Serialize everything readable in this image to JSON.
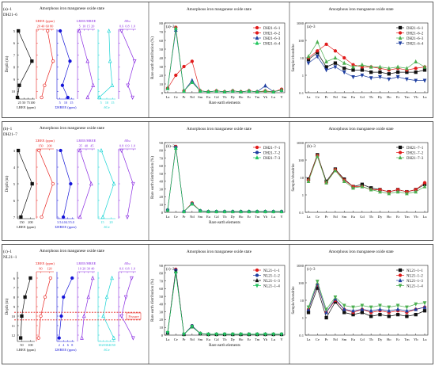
{
  "colors": {
    "black": "#111111",
    "red": "#e8231f",
    "blue": "#1515d8",
    "purple": "#8a2be2",
    "cyan": "#17d4d4",
    "fracture": "#e8231f",
    "s_red": "#e11b1b",
    "s_blue": "#1f3fa0",
    "s_green": "#22c55e",
    "s_light_green": "#4caf50"
  },
  "chart_data": [
    {
      "id": "a1",
      "label": "(a)–1",
      "sample": "DH21–6",
      "title": "Amorphous iron manganese oxide state",
      "type": "line",
      "ylabel": "Depth (m)",
      "ylim": [
        5,
        10.5
      ],
      "yticks": [
        5,
        6,
        7,
        8,
        9,
        10
      ],
      "depths": [
        5,
        7.5,
        9.5,
        10.5
      ],
      "fracture": null,
      "tracks": [
        {
          "key": "lree",
          "name": "LREE (ppm)",
          "axis": "bottom",
          "ticks": [
            "25",
            "50",
            "75",
            "100"
          ],
          "xlim": [
            15,
            105
          ],
          "values": [
            20,
            90,
            25,
            15
          ]
        },
        {
          "key": "sree",
          "name": "ΣREE (ppm)",
          "axis": "top",
          "ticks": [
            "20",
            "40",
            "60",
            "80"
          ],
          "xlim": [
            15,
            85
          ],
          "values": [
            60,
            82,
            48,
            36
          ]
        },
        {
          "key": "hree",
          "name": "ΣHREE (ppm)",
          "axis": "bottom",
          "ticks": [
            "5",
            "10",
            "15"
          ],
          "xlim": [
            2,
            18
          ],
          "values": [
            5,
            14,
            7,
            12
          ]
        },
        {
          "key": "lh",
          "name": "LREE/HREE",
          "axis": "top",
          "ticks": [
            "5",
            "10",
            "15",
            "20"
          ],
          "xlim": [
            3,
            22
          ],
          "values": [
            5,
            14,
            20,
            14
          ]
        },
        {
          "key": "ce",
          "name": "δCe",
          "axis": "bottom",
          "ticks": [
            "5",
            "10",
            "15"
          ],
          "xlim": [
            2,
            18
          ],
          "values": [
            12,
            13,
            15,
            3
          ]
        },
        {
          "key": "eu",
          "name": "δEu",
          "axis": "top",
          "ticks": [
            "0.6",
            "0.8",
            "1.0"
          ],
          "xlim": [
            0.5,
            1.1
          ],
          "values": [
            0.6,
            1.05,
            0.82,
            0.98
          ]
        }
      ]
    },
    {
      "id": "a2",
      "label": "(a)–2",
      "type": "line",
      "title": "Amorphous iron manganese oxide state",
      "xlabel": "Rare earth elements",
      "ylabel": "Rare earth distribution (%)",
      "ylim": [
        0,
        80
      ],
      "yticks": [
        "0",
        "10",
        "20",
        "30",
        "40",
        "50",
        "60",
        "70",
        "80"
      ],
      "categories": [
        "La",
        "Ce",
        "Pr",
        "Nd",
        "Sm",
        "Eu",
        "Gd",
        "Tb",
        "Dy",
        "Ho",
        "Er",
        "Tm",
        "Yb",
        "Lu",
        "Y"
      ],
      "series": [
        {
          "name": "DH21–6–1",
          "color": "#e11b1b",
          "marker": "o",
          "values": [
            5,
            75,
            2,
            12,
            2,
            1,
            2,
            1,
            2,
            1,
            2,
            1,
            1.5,
            1,
            3
          ]
        },
        {
          "name": "DH21–6–2",
          "color": "#e11b1b",
          "marker": "o",
          "values": [
            5,
            20,
            30,
            36,
            2,
            1,
            2,
            1,
            2,
            1,
            2,
            1,
            2,
            1,
            4
          ]
        },
        {
          "name": "DH21–6–3",
          "color": "#1f3fa0",
          "marker": "^",
          "values": [
            5,
            72,
            2,
            14,
            2,
            1,
            2,
            1,
            2,
            1,
            2,
            1,
            8,
            1,
            3
          ]
        },
        {
          "name": "DH21–6–4",
          "color": "#22c55e",
          "marker": "^",
          "values": [
            5,
            74,
            2,
            12,
            2,
            1,
            2,
            1,
            2,
            1,
            2,
            1,
            2,
            1,
            3
          ]
        }
      ]
    },
    {
      "id": "a3",
      "label": "(a)–3",
      "type": "line",
      "title": "Amorphous iron manganese oxide state",
      "ylabel": "Sample/chondrite",
      "ylog": true,
      "ylim": [
        0.1,
        1000
      ],
      "yticks": [
        "0.1",
        "1",
        "10",
        "100",
        "1000"
      ],
      "categories": [
        "La",
        "Ce",
        "Pr",
        "Nd",
        "Sm",
        "Eu",
        "Gd",
        "Tb",
        "Dy",
        "Ho",
        "Er",
        "Tm",
        "Yb",
        "Lu"
      ],
      "series": [
        {
          "name": "DH21–6–1",
          "color": "#111111",
          "marker": "s",
          "values": [
            8,
            20,
            3,
            5,
            2.5,
            2,
            2,
            1.5,
            1.5,
            1.2,
            1.5,
            1.5,
            1.5,
            2
          ]
        },
        {
          "name": "DH21–6–2",
          "color": "#e11b1b",
          "marker": "o",
          "values": [
            10,
            25,
            60,
            25,
            10,
            4,
            3,
            3,
            2.5,
            2,
            2.5,
            2,
            2.5,
            3
          ]
        },
        {
          "name": "DH21–6–3",
          "color": "#4caf50",
          "marker": "^",
          "values": [
            12,
            80,
            6,
            10,
            5,
            3,
            4,
            3,
            3,
            2.5,
            3,
            2.5,
            6,
            3
          ]
        },
        {
          "name": "DH21–6–4",
          "color": "#1f3fa0",
          "marker": "v",
          "values": [
            5,
            12,
            2,
            3,
            1.5,
            0.8,
            1,
            0.7,
            0.8,
            0.6,
            0.8,
            0.6,
            0.5,
            0.5
          ]
        }
      ]
    },
    {
      "id": "b1",
      "label": "(b)–1",
      "sample": "DH21–7",
      "title": "Amorphous iron manganese oxide state",
      "type": "line",
      "ylabel": "Depth (m)",
      "ylim": [
        3,
        7
      ],
      "yticks": [
        3,
        4,
        5,
        6,
        7
      ],
      "depths": [
        3,
        5,
        7
      ],
      "fracture": null,
      "tracks": [
        {
          "key": "lree",
          "name": "LREE (ppm)",
          "axis": "bottom",
          "ticks": [
            "150",
            "200"
          ],
          "xlim": [
            120,
            220
          ],
          "values": [
            125,
            205,
            140
          ]
        },
        {
          "key": "sree",
          "name": "ΣREE (ppm)",
          "axis": "top",
          "ticks": [
            "150",
            "200"
          ],
          "xlim": [
            120,
            220
          ],
          "values": [
            135,
            215,
            150
          ]
        },
        {
          "key": "hree",
          "name": "ΣHREE (ppm)",
          "axis": "bottom",
          "ticks": [
            "3.5",
            "4.0",
            "4.5",
            "5.0"
          ],
          "xlim": [
            3.3,
            5.2
          ],
          "values": [
            3.7,
            4.8,
            4.0
          ]
        },
        {
          "key": "lh",
          "name": "LREE/HREE",
          "axis": "top",
          "ticks": [
            "35",
            "40",
            "45"
          ],
          "xlim": [
            33,
            47
          ],
          "values": [
            35,
            44,
            35
          ]
        },
        {
          "key": "ce",
          "name": "δCe",
          "axis": "bottom",
          "ticks": [
            "15",
            "20"
          ],
          "xlim": [
            12,
            23
          ],
          "values": [
            14,
            22,
            15
          ]
        },
        {
          "key": "eu",
          "name": "δEu",
          "axis": "top",
          "ticks": [
            "0.8",
            "0.9",
            "1.0"
          ],
          "xlim": [
            0.75,
            1.05
          ],
          "values": [
            0.8,
            1.0,
            0.9
          ]
        }
      ]
    },
    {
      "id": "b2",
      "label": "(b)–2",
      "type": "line",
      "title": "Amorphous iron manganese oxide state",
      "xlabel": "Rare earth elements",
      "ylabel": "Rare earth distribution (%)",
      "ylim": [
        0,
        90
      ],
      "yticks": [
        "0",
        "10",
        "20",
        "30",
        "40",
        "50",
        "60",
        "70",
        "80",
        "90"
      ],
      "categories": [
        "La",
        "Ce",
        "Pr",
        "Nd",
        "Sm",
        "Eu",
        "Gd",
        "Tb",
        "Dy",
        "Ho",
        "Er",
        "Tm",
        "Yb",
        "Lu",
        "Y"
      ],
      "series": [
        {
          "name": "DH21–7–1",
          "color": "#e11b1b",
          "marker": "o",
          "values": [
            3,
            85,
            1,
            12,
            2,
            1,
            1,
            1,
            1,
            1,
            1,
            1,
            1,
            1,
            1
          ]
        },
        {
          "name": "DH21–7–2",
          "color": "#1f3fa0",
          "marker": "o",
          "values": [
            3,
            84,
            1,
            11,
            2,
            1,
            1,
            1,
            1,
            1,
            1,
            1,
            1,
            1,
            1
          ]
        },
        {
          "name": "DH21–7–3",
          "color": "#22c55e",
          "marker": "^",
          "values": [
            3,
            83,
            1,
            11,
            2,
            1,
            1,
            1,
            1,
            1,
            1,
            1,
            1,
            1,
            1
          ]
        }
      ]
    },
    {
      "id": "b3",
      "label": "(b)–3",
      "type": "line",
      "title": "Amorphous iron manganese oxide state",
      "ylabel": "Sample/chondrite",
      "ylog": true,
      "ylim": [
        0.1,
        1000
      ],
      "yticks": [
        "0.1",
        "1",
        "10",
        "100",
        "1000"
      ],
      "categories": [
        "La",
        "Ce",
        "Pr",
        "Nd",
        "Sm",
        "Eu",
        "Gd",
        "Tb",
        "Dy",
        "Ho",
        "Er",
        "Tm",
        "Yb",
        "Lu"
      ],
      "series": [
        {
          "name": "DH21–7–1",
          "color": "#111111",
          "marker": "s",
          "values": [
            8,
            200,
            6,
            30,
            8,
            3,
            4,
            2.5,
            2,
            1.5,
            2,
            1.5,
            2,
            4
          ]
        },
        {
          "name": "DH21–7–2",
          "color": "#e11b1b",
          "marker": "o",
          "values": [
            7,
            180,
            5,
            28,
            7,
            3,
            3,
            2,
            2,
            1.5,
            2,
            1.5,
            2,
            5
          ]
        },
        {
          "name": "DH21–7–3",
          "color": "#4caf50",
          "marker": "^",
          "values": [
            6,
            160,
            5,
            25,
            6,
            2.5,
            3,
            2,
            1.5,
            1.2,
            1.5,
            1.2,
            1.5,
            3
          ]
        }
      ]
    },
    {
      "id": "c1",
      "label": "(c)–1",
      "sample": "NL21–1",
      "title": "Amorphous iron manganese oxide state",
      "type": "line",
      "ylabel": "Depth (m)",
      "ylim": [
        5.5,
        12.5
      ],
      "yticks": [
        6,
        7,
        8,
        9,
        10,
        11,
        12
      ],
      "depths": [
        6,
        8,
        10,
        12.3
      ],
      "fracture": {
        "label": "Fissure",
        "from": 9.6,
        "to": 10.4
      },
      "tracks": [
        {
          "key": "lree",
          "name": "LREE (ppm)",
          "axis": "bottom",
          "ticks": [
            "50",
            "100"
          ],
          "xlim": [
            40,
            120
          ],
          "values": [
            100,
            75,
            60,
            55
          ]
        },
        {
          "key": "sree",
          "name": "ΣREE (ppm)",
          "axis": "top",
          "ticks": [
            "80",
            "120"
          ],
          "xlim": [
            60,
            140
          ],
          "values": [
            125,
            100,
            80,
            70
          ]
        },
        {
          "key": "hree",
          "name": "ΣHREE (ppm)",
          "axis": "bottom",
          "ticks": [
            "2",
            "4",
            "6",
            "8"
          ],
          "xlim": [
            1,
            9
          ],
          "values": [
            8,
            4,
            3,
            2
          ]
        },
        {
          "key": "lh",
          "name": "LREE/HREE",
          "axis": "top",
          "ticks": [
            "10",
            "20",
            "30",
            "40"
          ],
          "xlim": [
            5,
            45
          ],
          "values": [
            40,
            30,
            20,
            15
          ]
        },
        {
          "key": "ce",
          "name": "δCe",
          "axis": "bottom",
          "ticks": [
            "10",
            "20",
            "30",
            "40",
            "50"
          ],
          "xlim": [
            5,
            55
          ],
          "values": [
            45,
            30,
            20,
            50
          ]
        },
        {
          "key": "eu",
          "name": "δEu",
          "axis": "top",
          "ticks": [
            "0.6",
            "0.8",
            "1.0"
          ],
          "xlim": [
            0.5,
            1.1
          ],
          "values": [
            0.95,
            0.75,
            0.6,
            1.0
          ]
        }
      ]
    },
    {
      "id": "c2",
      "label": "(c)–2",
      "type": "line",
      "title": "Amorphous iron manganese oxide state",
      "xlabel": "Rare earth elements",
      "ylabel": "Rare earth distribution (%)",
      "ylim": [
        0,
        90
      ],
      "yticks": [
        "0",
        "10",
        "20",
        "30",
        "40",
        "50",
        "60",
        "70",
        "80",
        "90"
      ],
      "categories": [
        "La",
        "Ce",
        "Pr",
        "Nd",
        "Sm",
        "Eu",
        "Gd",
        "Tb",
        "Dy",
        "Ho",
        "Er",
        "Tm",
        "Yb",
        "Lu",
        "Y"
      ],
      "series": [
        {
          "name": "NL21–1–1",
          "color": "#e11b1b",
          "marker": "o",
          "values": [
            3,
            85,
            1,
            12,
            2,
            1,
            1,
            1,
            1,
            1,
            1,
            1,
            1,
            1,
            1
          ]
        },
        {
          "name": "NL21–1–2",
          "color": "#1f3fa0",
          "marker": "o",
          "values": [
            3,
            84,
            1,
            12,
            2,
            1,
            1,
            1,
            1,
            1,
            1,
            1,
            1,
            1,
            1
          ]
        },
        {
          "name": "NL21–1–3",
          "color": "#111111",
          "marker": "^",
          "values": [
            3,
            82,
            1,
            11,
            2,
            1,
            1,
            1,
            1,
            1,
            1,
            1,
            1,
            1,
            1
          ]
        },
        {
          "name": "NL21–1–4",
          "color": "#22c55e",
          "marker": "v",
          "values": [
            3,
            80,
            1,
            11,
            2,
            1,
            1,
            1,
            1,
            1,
            1,
            1,
            1,
            1,
            1
          ]
        }
      ]
    },
    {
      "id": "c3",
      "label": "(c)–3",
      "type": "line",
      "title": "Amorphous iron manganese oxide state",
      "ylabel": "Sample/chondrite",
      "ylog": true,
      "ylim": [
        0.1,
        1000
      ],
      "yticks": [
        "0.1",
        "1",
        "10",
        "100",
        "1000"
      ],
      "categories": [
        "La",
        "Ce",
        "Pr",
        "Nd",
        "Sm",
        "Eu",
        "Gd",
        "Tb",
        "Dy",
        "Ho",
        "Er",
        "Tm",
        "Yb",
        "Lu"
      ],
      "series": [
        {
          "name": "NL21–1–1",
          "color": "#111111",
          "marker": "s",
          "values": [
            2,
            50,
            1,
            8,
            2,
            1.5,
            2,
            1.2,
            1.5,
            1.2,
            1.5,
            1.2,
            1.5,
            2.5
          ]
        },
        {
          "name": "NL21–1–2",
          "color": "#e11b1b",
          "marker": "o",
          "values": [
            3,
            80,
            2,
            10,
            3,
            2,
            3,
            2,
            2.5,
            2,
            2.5,
            2,
            3,
            4
          ]
        },
        {
          "name": "NL21–1–3",
          "color": "#1f3fa0",
          "marker": "^",
          "values": [
            3,
            90,
            2,
            12,
            3,
            2.5,
            3,
            2.5,
            3,
            2.5,
            3,
            2.5,
            3,
            4
          ]
        },
        {
          "name": "NL21–1–4",
          "color": "#4caf50",
          "marker": "v",
          "values": [
            4,
            120,
            3,
            15,
            5,
            4,
            5,
            4,
            5,
            4,
            5,
            4,
            6,
            7
          ]
        }
      ]
    }
  ]
}
